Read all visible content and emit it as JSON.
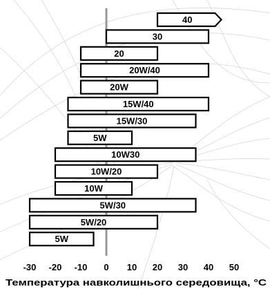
{
  "chart_data": {
    "type": "bar",
    "orientation": "horizontal-range",
    "xlabel": "Температура навколишнього середовища, °C",
    "ylabel": "",
    "xlim": [
      -30,
      50
    ],
    "x_ticks": [
      "-30",
      "-20",
      "-10",
      "0",
      "10",
      "20",
      "30",
      "40",
      "50"
    ],
    "grid": false,
    "bars": [
      {
        "label": "40",
        "min": 20,
        "max": 45,
        "arrow": true
      },
      {
        "label": "30",
        "min": 0,
        "max": 40
      },
      {
        "label": "20",
        "min": -10,
        "max": 20
      },
      {
        "label": "20W/40",
        "min": -10,
        "max": 40
      },
      {
        "label": "20W",
        "min": -10,
        "max": 20
      },
      {
        "label": "15W/40",
        "min": -15,
        "max": 40
      },
      {
        "label": "15W/30",
        "min": -15,
        "max": 35
      },
      {
        "label": "5W",
        "min": -15,
        "max": 10
      },
      {
        "label": "10W30",
        "min": -20,
        "max": 35
      },
      {
        "label": "10W/20",
        "min": -20,
        "max": 20
      },
      {
        "label": "10W",
        "min": -20,
        "max": 10
      },
      {
        "label": "5W/30",
        "min": -30,
        "max": 35
      },
      {
        "label": "5W/20",
        "min": -30,
        "max": 20
      },
      {
        "label": "5W",
        "min": -30,
        "max": -5
      }
    ],
    "colors": {
      "bar_fill": "#ffffff",
      "bar_stroke": "#000000",
      "zero_line": "#999999"
    }
  }
}
